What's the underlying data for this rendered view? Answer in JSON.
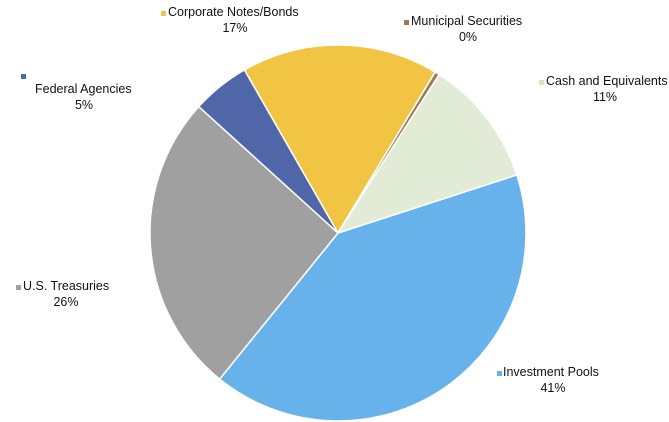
{
  "chart_data": {
    "type": "pie",
    "title": "",
    "slices": [
      {
        "label": "Investment Pools",
        "percent_label": "41%",
        "value": 41,
        "color": "#67B2EA"
      },
      {
        "label": "U.S. Treasuries",
        "percent_label": "26%",
        "value": 26,
        "color": "#A0A0A0"
      },
      {
        "label": "Federal Agencies",
        "percent_label": "5%",
        "value": 5,
        "color": "#4F67A8"
      },
      {
        "label": "Corporate Notes/Bonds",
        "percent_label": "17%",
        "value": 17,
        "color": "#F2C443"
      },
      {
        "label": "Municipal Securities",
        "percent_label": "0%",
        "value": 0.4,
        "color": "#9B7A52"
      },
      {
        "label": "Cash and Equivalents",
        "percent_label": "11%",
        "value": 11,
        "color": "#E2EBD6"
      }
    ],
    "legend": "none",
    "grid": false
  }
}
